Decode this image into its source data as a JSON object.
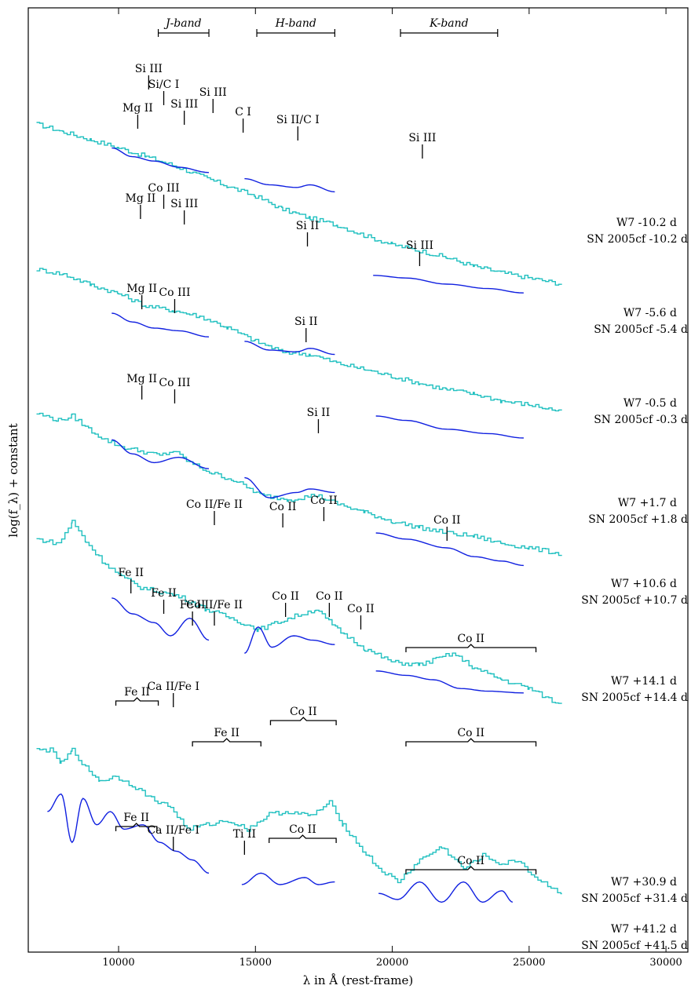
{
  "chart_data": {
    "type": "line",
    "xlabel": "λ in Å (rest-frame)",
    "ylabel": "log(f_λ) + constant",
    "xlim": [
      6700,
      30800
    ],
    "x_ticks": [
      10000,
      15000,
      20000,
      25000,
      30000
    ],
    "grid": false,
    "legend": "none",
    "colors": {
      "model": "#20c0c0",
      "observed": "#1020e0"
    },
    "bands": [
      {
        "label": "J-band",
        "x0": 11450,
        "x1": 13300
      },
      {
        "label": "H-band",
        "x0": 15050,
        "x1": 17900
      },
      {
        "label": "K-band",
        "x0": 20300,
        "x1": 23850
      }
    ],
    "epochs": [
      {
        "model_label": "W7 -10.2 d",
        "obs_label": "SN 2005cf -10.2 d",
        "model": {
          "x": [
            7000,
            8000,
            9000,
            10000,
            11000,
            12000,
            13000,
            14000,
            15000,
            16000,
            17000,
            18000,
            19000,
            20000,
            21000,
            22000,
            23000,
            24000,
            25000,
            26200
          ],
          "y": [
            9.57,
            9.48,
            9.39,
            9.3,
            9.2,
            9.1,
            8.98,
            8.86,
            8.75,
            8.6,
            8.5,
            8.42,
            8.3,
            8.2,
            8.13,
            8.05,
            7.95,
            7.88,
            7.82,
            7.75
          ]
        },
        "observed": [
          {
            "x": [
              9750,
              10500,
              11300,
              12200,
              13300
            ],
            "y": [
              9.3,
              9.2,
              9.15,
              9.08,
              9.02
            ]
          },
          {
            "x": [
              14600,
              15500,
              16500,
              17000,
              17900
            ],
            "y": [
              8.95,
              8.88,
              8.85,
              8.88,
              8.8
            ]
          },
          {
            "x": [
              19300,
              20500,
              22000,
              23500,
              24800
            ],
            "y": [
              7.85,
              7.82,
              7.75,
              7.7,
              7.65
            ]
          }
        ]
      },
      {
        "model_label": "W7 -5.6 d",
        "obs_label": "SN 2005cf -5.4 d",
        "model": {
          "x": [
            7000,
            8000,
            9000,
            10000,
            11000,
            12000,
            13000,
            14000,
            15000,
            16000,
            17000,
            18000,
            19000,
            20000,
            21000,
            22000,
            23000,
            24000,
            25000,
            26200
          ],
          "y": [
            7.92,
            7.86,
            7.74,
            7.64,
            7.5,
            7.45,
            7.38,
            7.25,
            7.1,
            6.98,
            6.95,
            6.85,
            6.78,
            6.7,
            6.62,
            6.55,
            6.5,
            6.42,
            6.38,
            6.3
          ]
        },
        "observed": [
          {
            "x": [
              9750,
              10500,
              11300,
              12200,
              13300
            ],
            "y": [
              7.42,
              7.32,
              7.25,
              7.22,
              7.15
            ]
          },
          {
            "x": [
              14600,
              15500,
              16500,
              17000,
              17900
            ],
            "y": [
              7.1,
              7.0,
              6.98,
              7.02,
              6.95
            ]
          },
          {
            "x": [
              19400,
              20500,
              22000,
              23500,
              24800
            ],
            "y": [
              6.25,
              6.2,
              6.1,
              6.05,
              6.0
            ]
          }
        ]
      },
      {
        "model_label": "W7 -0.5 d",
        "obs_label": "SN 2005cf -0.3 d",
        "model": {
          "x": [
            7000,
            7800,
            8300,
            8900,
            9500,
            10100,
            10800,
            11500,
            12000,
            12600,
            13400,
            14200,
            15200,
            16200,
            17200,
            18000,
            19000,
            20000,
            21000,
            22000,
            23000,
            24000,
            25000,
            26200
          ],
          "y": [
            6.28,
            6.2,
            6.25,
            6.1,
            5.98,
            5.9,
            5.85,
            5.8,
            5.85,
            5.72,
            5.6,
            5.52,
            5.35,
            5.3,
            5.35,
            5.25,
            5.15,
            5.05,
            4.98,
            4.92,
            4.88,
            4.8,
            4.75,
            4.68
          ]
        },
        "observed": [
          {
            "x": [
              9750,
              10500,
              11300,
              12200,
              13300
            ],
            "y": [
              5.98,
              5.82,
              5.72,
              5.78,
              5.65
            ]
          },
          {
            "x": [
              14600,
              15500,
              16500,
              17000,
              17900
            ],
            "y": [
              5.55,
              5.32,
              5.38,
              5.42,
              5.38
            ]
          },
          {
            "x": [
              19400,
              20500,
              22000,
              23000,
              24000,
              24800
            ],
            "y": [
              4.92,
              4.85,
              4.75,
              4.65,
              4.6,
              4.55
            ]
          }
        ]
      },
      {
        "model_label": "W7 +10.6 d",
        "obs_label": "SN 2005cf +10.7 d",
        "model": {
          "x": [
            7000,
            7800,
            8300,
            8800,
            9400,
            10100,
            10800,
            11500,
            12200,
            13200,
            14100,
            15100,
            16200,
            17200,
            18000,
            19000,
            20000,
            21000,
            22200,
            23000,
            24000,
            25000,
            26200
          ],
          "y": [
            4.85,
            4.8,
            5.05,
            4.82,
            4.6,
            4.42,
            4.3,
            4.25,
            4.2,
            4.05,
            3.95,
            3.82,
            3.95,
            4.05,
            3.82,
            3.6,
            3.45,
            3.42,
            3.55,
            3.38,
            3.25,
            3.15,
            2.95
          ]
        },
        "observed": [
          {
            "x": [
              9750,
              10500,
              11300,
              11900,
              12600,
              13300
            ],
            "y": [
              4.18,
              4.0,
              3.9,
              3.75,
              3.95,
              3.7
            ]
          },
          {
            "x": [
              14600,
              15100,
              15600,
              16400,
              17100,
              17900
            ],
            "y": [
              3.55,
              3.85,
              3.62,
              3.75,
              3.7,
              3.65
            ]
          },
          {
            "x": [
              19400,
              20500,
              21500,
              22500,
              23500,
              24800
            ],
            "y": [
              3.35,
              3.3,
              3.25,
              3.15,
              3.12,
              3.1
            ]
          }
        ]
      },
      {
        "model_label": "W7 +30.9 d",
        "obs_label": "SN 2005cf +31.4 d",
        "model": {
          "x": [
            7000,
            7500,
            7900,
            8300,
            8800,
            9300,
            9900,
            10500,
            11200,
            11900,
            12500,
            13200,
            14000,
            14700,
            15500,
            16200,
            17000,
            17700,
            18200,
            18800,
            19500,
            20200,
            21000,
            21800,
            22600,
            23300,
            24000,
            24600,
            25200,
            26200
          ],
          "y": [
            2.45,
            2.45,
            2.3,
            2.45,
            2.25,
            2.1,
            2.15,
            2.05,
            1.9,
            1.8,
            1.55,
            1.6,
            1.65,
            1.55,
            1.72,
            1.75,
            1.7,
            1.85,
            1.6,
            1.35,
            1.1,
            0.95,
            1.2,
            1.35,
            1.1,
            1.25,
            1.15,
            1.2,
            1.0,
            0.82
          ]
        },
        "observed": [
          {
            "x": [
              7400,
              7900,
              8300,
              8700,
              9200,
              9700,
              10200,
              10900,
              11500,
              12100,
              12700,
              13300
            ],
            "y": [
              1.75,
              1.95,
              1.4,
              1.9,
              1.6,
              1.75,
              1.55,
              1.6,
              1.4,
              1.3,
              1.2,
              1.05
            ]
          },
          {
            "x": [
              14500,
              15200,
              15900,
              16800,
              17300,
              17900
            ],
            "y": [
              0.92,
              1.05,
              0.92,
              1.0,
              0.92,
              0.95
            ]
          },
          {
            "x": [
              19500,
              20200,
              21000,
              21800,
              22600,
              23300,
              24000,
              24400
            ],
            "y": [
              0.82,
              0.75,
              0.95,
              0.72,
              0.95,
              0.72,
              0.85,
              0.72
            ]
          }
        ]
      }
    ],
    "extra_labels": [
      {
        "model_label": "W7 +1.7 d",
        "obs_label": "SN 2005cf +1.8 d"
      },
      {
        "model_label": "W7 +14.1 d",
        "obs_label": "SN 2005cf +14.4 d"
      },
      {
        "model_label": "W7 +41.2 d",
        "obs_label": "SN 2005cf +41.5 d"
      }
    ],
    "line_ids": [
      "Mg II",
      "Si III",
      "Si/C I",
      "Si III",
      "Si III",
      "C I",
      "Si II/C I",
      "Si III",
      "Co III",
      "Si II",
      "Co II/Fe II",
      "Co II",
      "Fe II",
      "Ca II/Fe I",
      "Ti II"
    ]
  }
}
